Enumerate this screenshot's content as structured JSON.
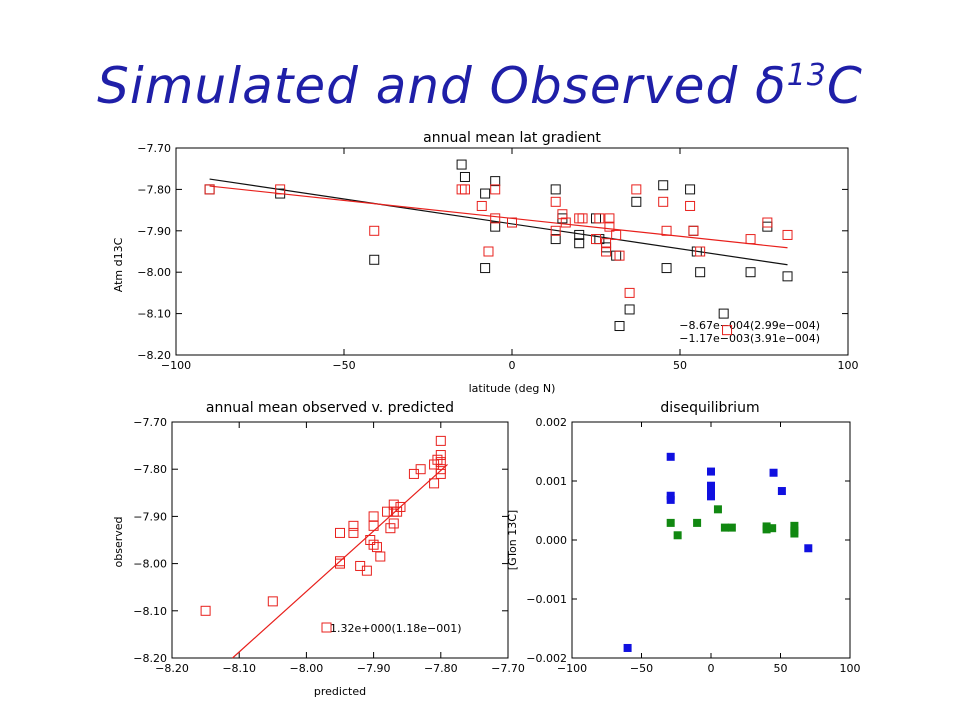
{
  "slide": {
    "title_main": "Simulated and Observed δ",
    "title_sup": "13",
    "title_end": "C"
  },
  "colors": {
    "title": "#1f1fa8",
    "red": "#e8201c",
    "black": "#111111",
    "blue": "#1010e0",
    "green": "#118811"
  },
  "chart_data": [
    {
      "id": "lat",
      "type": "scatter",
      "title": "annual mean lat gradient",
      "xlabel": "latitude (deg N)",
      "ylabel": "Atm d13C",
      "xlim": [
        -100,
        100
      ],
      "ylim": [
        -8.2,
        -7.7
      ],
      "xticks": [
        -100,
        -50,
        0,
        50,
        100
      ],
      "xtick_labels": [
        "−100",
        "−50",
        "0",
        "50",
        "100"
      ],
      "yticks": [
        -8.2,
        -8.1,
        -8.0,
        -7.9,
        -7.8,
        -7.7
      ],
      "ytick_labels": [
        "−8.20",
        "−8.10",
        "−8.00",
        "−7.90",
        "−7.80",
        "−7.70"
      ],
      "series": [
        {
          "color": "black",
          "points": [
            [
              -90,
              -7.8
            ],
            [
              -69,
              -7.81
            ],
            [
              -41,
              -7.97
            ],
            [
              -15,
              -7.74
            ],
            [
              -14,
              -7.77
            ],
            [
              -8,
              -7.81
            ],
            [
              -8,
              -7.99
            ],
            [
              -5,
              -7.78
            ],
            [
              -5,
              -7.89
            ],
            [
              0,
              -7.88
            ],
            [
              13,
              -7.8
            ],
            [
              13,
              -7.92
            ],
            [
              15,
              -7.87
            ],
            [
              20,
              -7.91
            ],
            [
              20,
              -7.93
            ],
            [
              25,
              -7.87
            ],
            [
              26,
              -7.92
            ],
            [
              28,
              -7.94
            ],
            [
              31,
              -7.96
            ],
            [
              32,
              -8.13
            ],
            [
              35,
              -8.09
            ],
            [
              37,
              -7.83
            ],
            [
              45,
              -7.79
            ],
            [
              46,
              -7.99
            ],
            [
              53,
              -7.8
            ],
            [
              54,
              -7.9
            ],
            [
              55,
              -7.95
            ],
            [
              56,
              -8.0
            ],
            [
              63,
              -8.1
            ],
            [
              71,
              -8.0
            ],
            [
              76,
              -7.89
            ],
            [
              82,
              -8.01
            ]
          ]
        },
        {
          "color": "red",
          "points": [
            [
              -90,
              -7.8
            ],
            [
              -69,
              -7.8
            ],
            [
              -41,
              -7.9
            ],
            [
              -15,
              -7.8
            ],
            [
              -14,
              -7.8
            ],
            [
              -9,
              -7.84
            ],
            [
              -7,
              -7.95
            ],
            [
              -5,
              -7.8
            ],
            [
              -5,
              -7.87
            ],
            [
              0,
              -7.88
            ],
            [
              13,
              -7.83
            ],
            [
              13,
              -7.9
            ],
            [
              15,
              -7.86
            ],
            [
              16,
              -7.88
            ],
            [
              20,
              -7.87
            ],
            [
              21,
              -7.87
            ],
            [
              25,
              -7.92
            ],
            [
              26,
              -7.87
            ],
            [
              28,
              -7.93
            ],
            [
              28,
              -7.95
            ],
            [
              29,
              -7.87
            ],
            [
              29,
              -7.89
            ],
            [
              31,
              -7.91
            ],
            [
              32,
              -7.96
            ],
            [
              35,
              -8.05
            ],
            [
              37,
              -7.8
            ],
            [
              45,
              -7.83
            ],
            [
              46,
              -7.9
            ],
            [
              53,
              -7.84
            ],
            [
              54,
              -7.9
            ],
            [
              56,
              -7.95
            ],
            [
              64,
              -8.14
            ],
            [
              71,
              -7.92
            ],
            [
              76,
              -7.88
            ],
            [
              82,
              -7.91
            ]
          ]
        }
      ],
      "fit_lines": [
        {
          "color": "black",
          "x": [
            -90,
            82
          ],
          "y": [
            -7.775,
            -7.982
          ]
        },
        {
          "color": "red",
          "x": [
            -90,
            82
          ],
          "y": [
            -7.792,
            -7.941
          ]
        }
      ],
      "annotations": [
        {
          "color": "red",
          "text": "−8.67e−004(2.99e−004)"
        },
        {
          "color": "black",
          "text": "−1.17e−003(3.91e−004)"
        }
      ]
    },
    {
      "id": "obs",
      "type": "scatter",
      "title": "annual mean observed v. predicted",
      "xlabel": "predicted",
      "ylabel": "observed",
      "xlim": [
        -8.2,
        -7.7
      ],
      "ylim": [
        -8.2,
        -7.7
      ],
      "xticks": [
        -8.2,
        -8.1,
        -8.0,
        -7.9,
        -7.8,
        -7.7
      ],
      "xtick_labels": [
        "−8.20",
        "−8.10",
        "−8.00",
        "−7.90",
        "−7.80",
        "−7.70"
      ],
      "yticks": [
        -8.2,
        -8.1,
        -8.0,
        -7.9,
        -7.8,
        -7.7
      ],
      "ytick_labels": [
        "−8.20",
        "−8.10",
        "−8.00",
        "−7.90",
        "−7.80",
        "−7.70"
      ],
      "series": [
        {
          "color": "red",
          "points": [
            [
              -8.15,
              -8.1
            ],
            [
              -8.05,
              -8.08
            ],
            [
              -7.95,
              -7.935
            ],
            [
              -7.95,
              -7.995
            ],
            [
              -7.95,
              -8.0
            ],
            [
              -7.93,
              -7.92
            ],
            [
              -7.93,
              -7.935
            ],
            [
              -7.92,
              -8.005
            ],
            [
              -7.91,
              -8.015
            ],
            [
              -7.905,
              -7.95
            ],
            [
              -7.9,
              -7.96
            ],
            [
              -7.9,
              -7.9
            ],
            [
              -7.9,
              -7.92
            ],
            [
              -7.895,
              -7.965
            ],
            [
              -7.89,
              -7.985
            ],
            [
              -7.88,
              -7.89
            ],
            [
              -7.875,
              -7.925
            ],
            [
              -7.87,
              -7.875
            ],
            [
              -7.87,
              -7.915
            ],
            [
              -7.87,
              -7.89
            ],
            [
              -7.865,
              -7.89
            ],
            [
              -7.86,
              -7.88
            ],
            [
              -7.84,
              -7.81
            ],
            [
              -7.83,
              -7.8
            ],
            [
              -7.81,
              -7.83
            ],
            [
              -7.81,
              -7.79
            ],
            [
              -7.805,
              -7.78
            ],
            [
              -7.8,
              -7.74
            ],
            [
              -7.8,
              -7.77
            ],
            [
              -7.8,
              -7.785
            ],
            [
              -7.8,
              -7.8
            ],
            [
              -7.8,
              -7.81
            ]
          ]
        }
      ],
      "fit_lines": [
        {
          "color": "red",
          "x": [
            -8.11,
            -7.79
          ],
          "y": [
            -8.2,
            -7.79
          ]
        }
      ],
      "annotations": [
        {
          "color": "red",
          "text": "1.32e+000(1.18e−001)"
        }
      ]
    },
    {
      "id": "dis",
      "type": "scatter",
      "title": "disequilibrium",
      "xlabel": "",
      "ylabel": "[GTon 13C]",
      "xlim": [
        -100,
        100
      ],
      "ylim": [
        -0.002,
        0.002
      ],
      "xticks": [
        -100,
        -50,
        0,
        50,
        100
      ],
      "xtick_labels": [
        "−100",
        "−50",
        "0",
        "50",
        "100"
      ],
      "yticks": [
        -0.002,
        -0.001,
        0,
        0.001,
        0.002
      ],
      "ytick_labels": [
        "−0.002",
        "−0.001",
        "0.000",
        "0.001",
        "0.002"
      ],
      "series": [
        {
          "color": "blue",
          "points": [
            [
              -60,
              -0.00183
            ],
            [
              -29,
              0.00141
            ],
            [
              -29,
              0.00075
            ],
            [
              -29,
              0.00068
            ],
            [
              0,
              0.00116
            ],
            [
              0,
              0.00092
            ],
            [
              0,
              0.00086
            ],
            [
              0,
              0.0008
            ],
            [
              0,
              0.00074
            ],
            [
              45,
              0.00114
            ],
            [
              51,
              0.00083
            ],
            [
              70,
              -0.00014
            ]
          ]
        },
        {
          "color": "green",
          "points": [
            [
              -29,
              0.00029
            ],
            [
              -24,
              8e-05
            ],
            [
              -10,
              0.00029
            ],
            [
              5,
              0.00052
            ],
            [
              10,
              0.00021
            ],
            [
              15,
              0.00021
            ],
            [
              40,
              0.00023
            ],
            [
              40,
              0.00018
            ],
            [
              44,
              0.0002
            ],
            [
              60,
              0.00024
            ],
            [
              60,
              0.00016
            ],
            [
              60,
              0.00011
            ]
          ]
        }
      ]
    }
  ]
}
